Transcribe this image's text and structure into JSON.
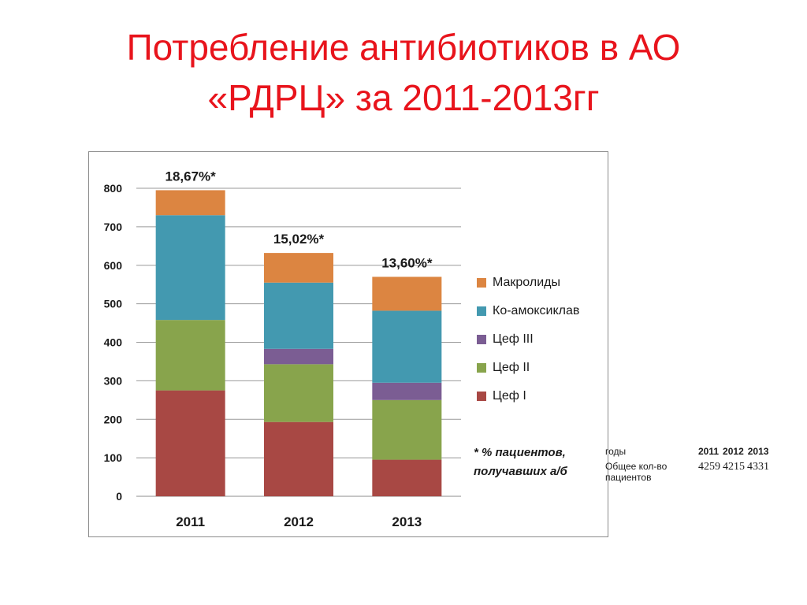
{
  "slide": {
    "title_line1": "Потребление антибиотиков в АО",
    "title_line2": "«РДРЦ» за 2011-2013гг"
  },
  "chart_data": {
    "type": "bar",
    "stacked": true,
    "categories": [
      "2011",
      "2012",
      "2013"
    ],
    "series": [
      {
        "name": "Цеф I",
        "color": "#a84844",
        "values": [
          275,
          193,
          95
        ]
      },
      {
        "name": "Цеф II",
        "color": "#88a44c",
        "values": [
          183,
          150,
          155
        ]
      },
      {
        "name": "Цеф III",
        "color": "#7b5d93",
        "values": [
          0,
          40,
          45
        ]
      },
      {
        "name": "Ко-амоксиклав",
        "color": "#4399b0",
        "values": [
          272,
          172,
          187
        ]
      },
      {
        "name": "Макролиды",
        "color": "#dc8541",
        "values": [
          65,
          77,
          88
        ]
      }
    ],
    "data_labels": [
      "18,67%*",
      "15,02%*",
      "13,60%*"
    ],
    "ylim": [
      0,
      800
    ],
    "yticks": [
      0,
      100,
      200,
      300,
      400,
      500,
      600,
      700,
      800
    ],
    "grid": true,
    "legend_position": "right",
    "legend_order": [
      "Макролиды",
      "Ко-амоксиклав",
      "Цеф III",
      "Цеф II",
      "Цеф I"
    ],
    "footnote": "* % пациентов, получавших а/б"
  },
  "side_table": {
    "header_label": "годы",
    "years": [
      "2011",
      "2012",
      "2013"
    ],
    "row_label": "Общее кол-во пациентов",
    "values": [
      "4259",
      "4215",
      "4331"
    ]
  }
}
